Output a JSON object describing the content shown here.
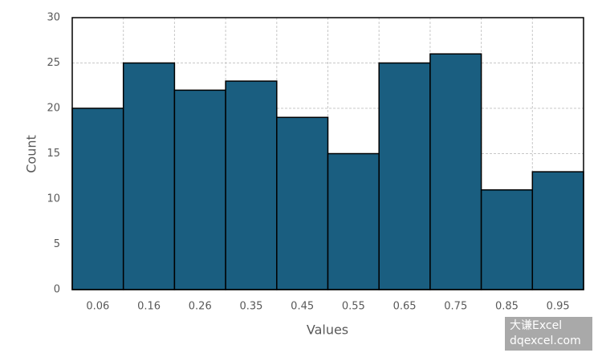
{
  "chart_data": {
    "type": "bar",
    "x_label": "Values",
    "y_label": "Count",
    "categories": [
      "0.06",
      "0.16",
      "0.26",
      "0.35",
      "0.45",
      "0.55",
      "0.65",
      "0.75",
      "0.85",
      "0.95"
    ],
    "values": [
      20,
      25,
      22,
      23,
      19,
      15,
      25,
      26,
      11,
      13
    ],
    "color": "#1a5e80",
    "ylim": [
      0,
      30
    ],
    "yticks": [
      0,
      5,
      10,
      15,
      20,
      25,
      30
    ],
    "grid": true
  },
  "watermark": {
    "line1": "大谦Excel",
    "line2": "dqexcel.com"
  }
}
